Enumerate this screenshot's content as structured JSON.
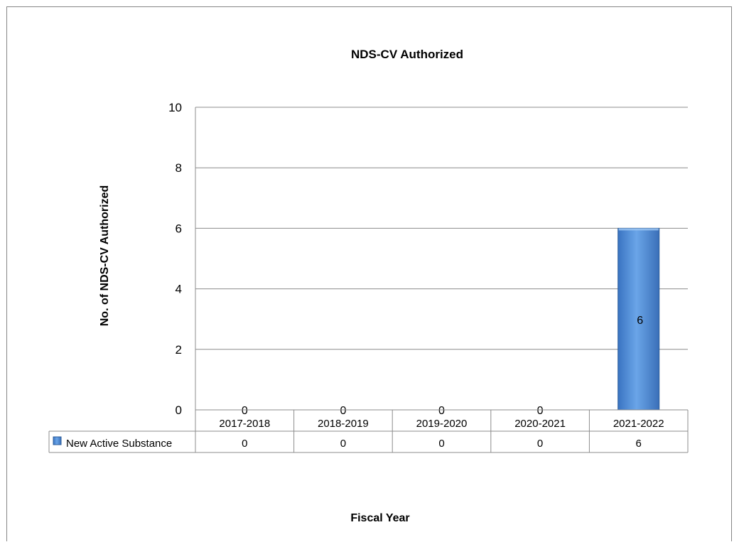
{
  "chart_data": {
    "type": "bar",
    "title": "NDS-CV Authorized",
    "xlabel": "Fiscal Year",
    "ylabel": "No. of NDS-CV Authorized",
    "categories": [
      "2017-2018",
      "2018-2019",
      "2019-2020",
      "2020-2021",
      "2021-2022"
    ],
    "series": [
      {
        "name": "New Active Substance",
        "values": [
          0,
          0,
          0,
          0,
          6
        ],
        "color": "#4f8fd6"
      }
    ],
    "ylim": [
      0,
      10
    ],
    "yticks": [
      0,
      2,
      4,
      6,
      8,
      10
    ],
    "grid": true,
    "data_labels": true,
    "legend": "data-table"
  }
}
